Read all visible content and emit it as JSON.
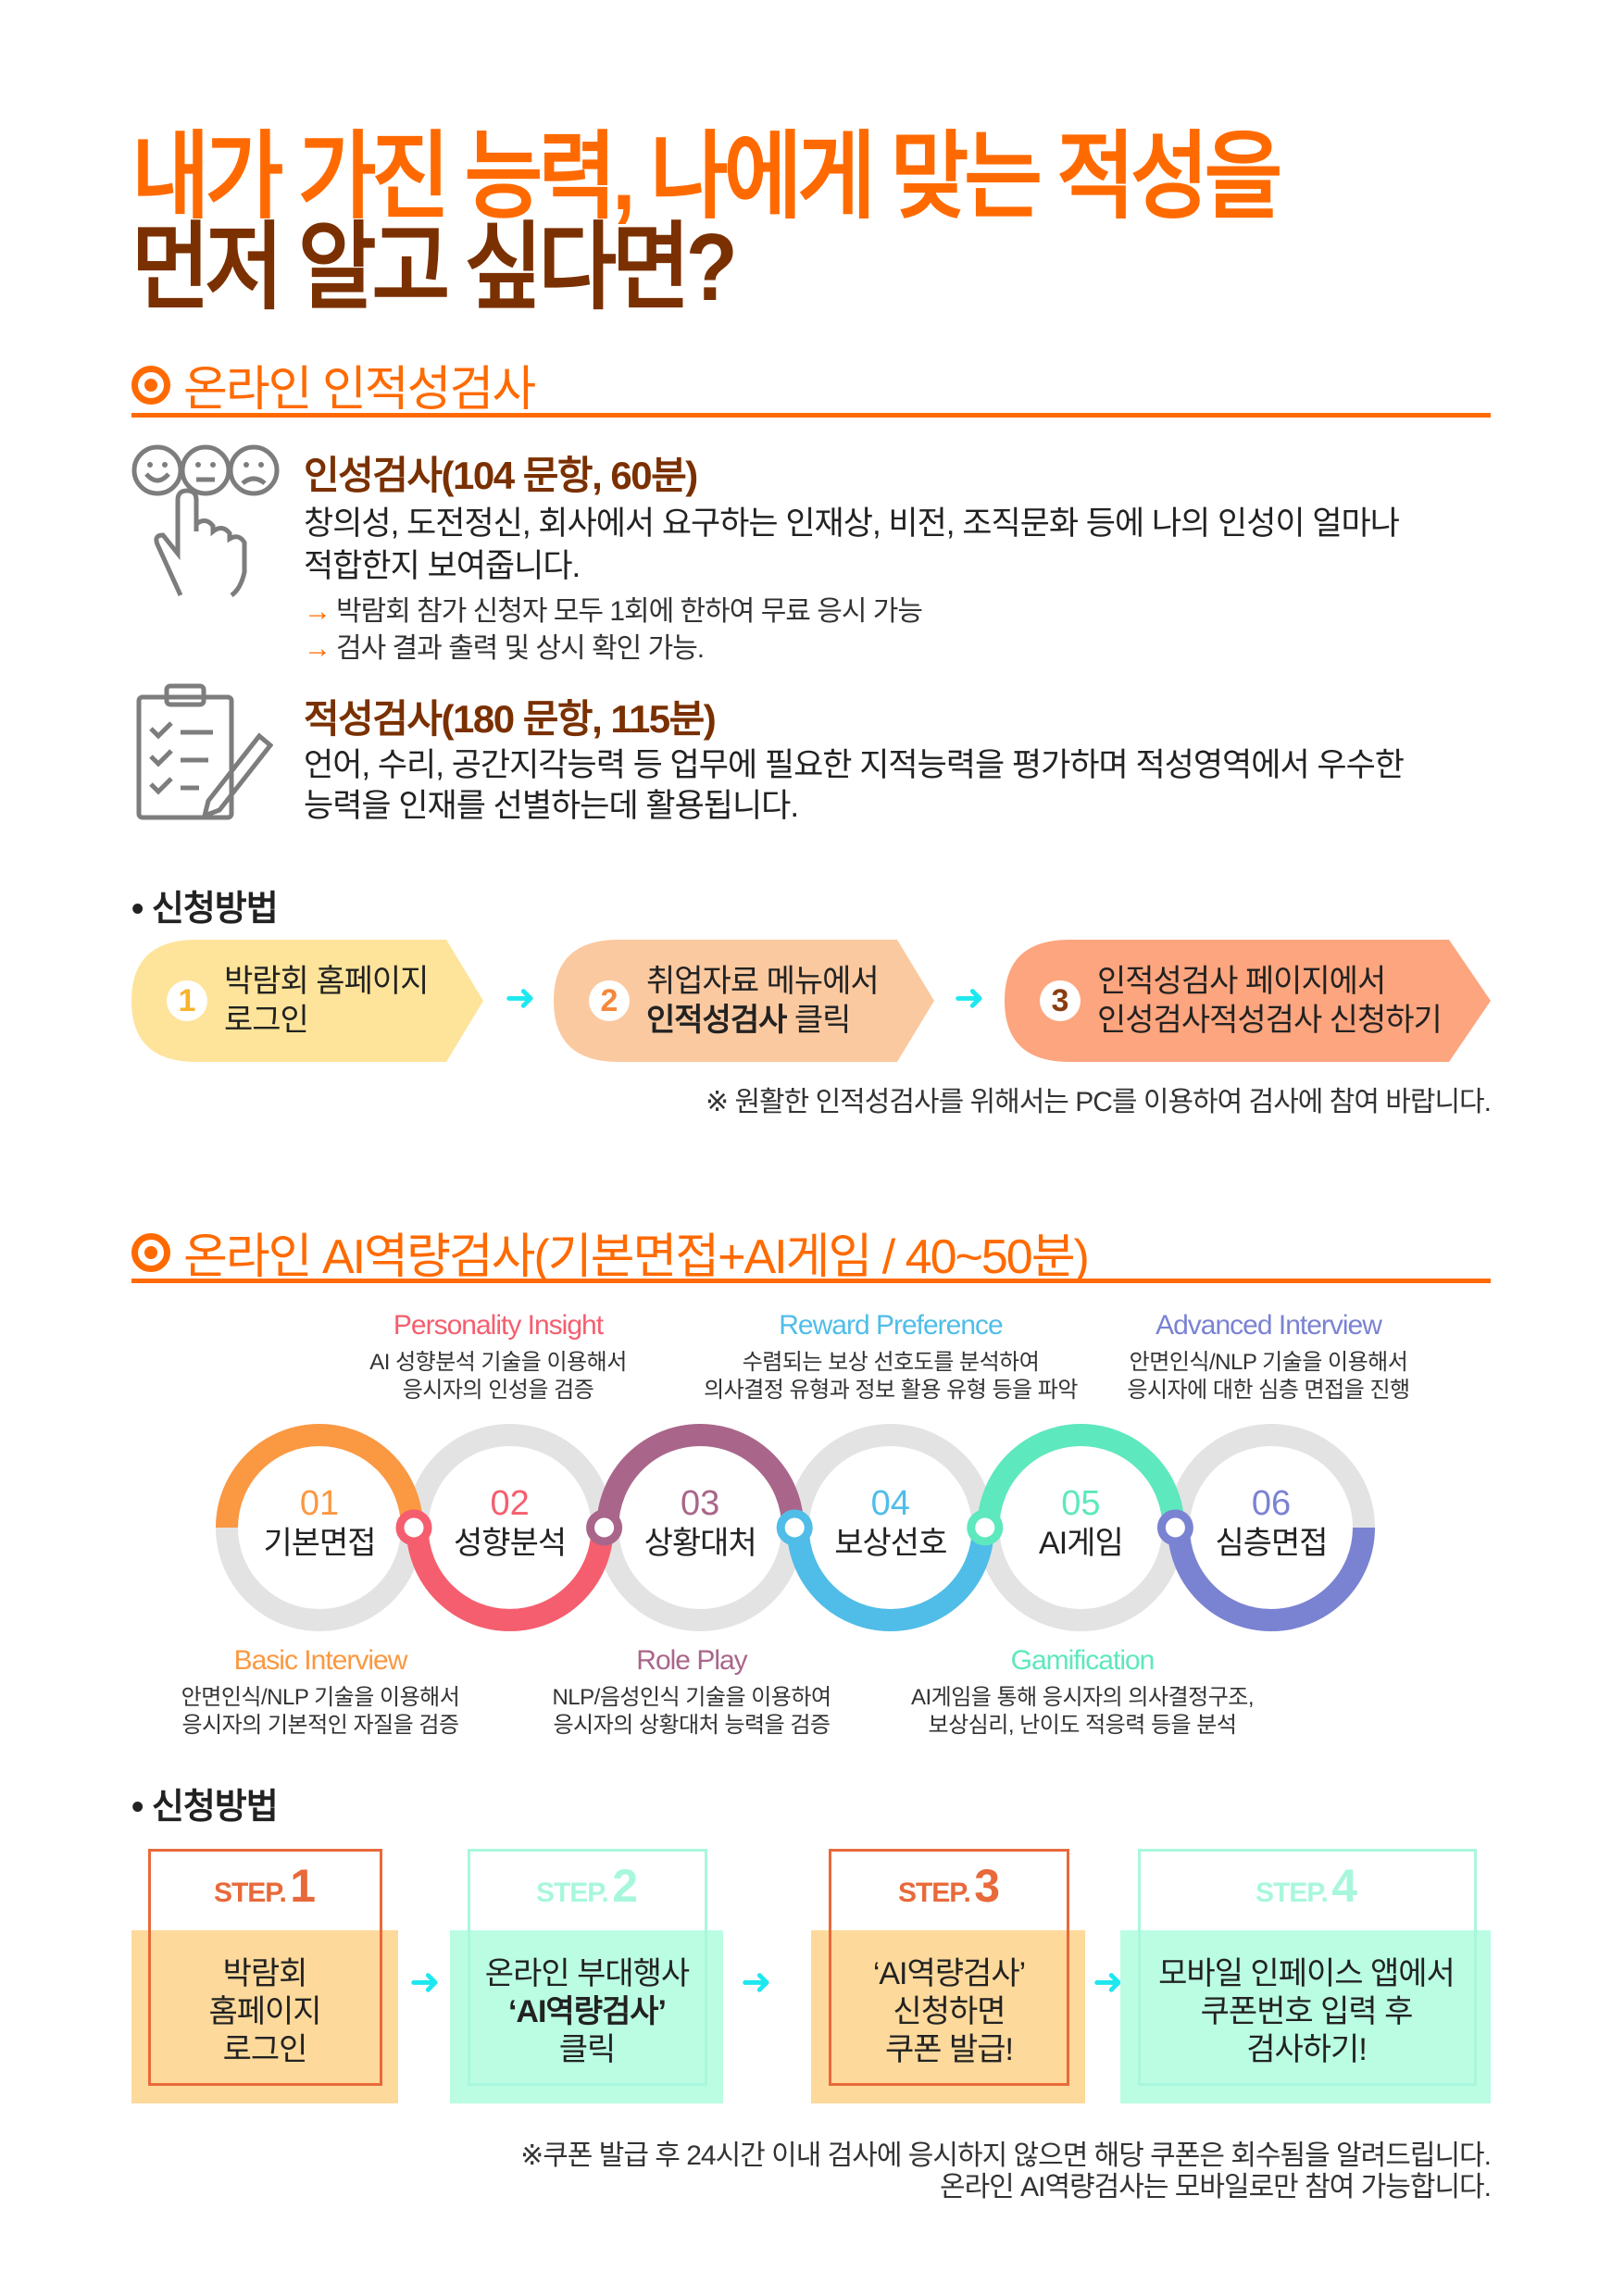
{
  "headline": {
    "line1": "내가 가진 능력, 나에게 맞는 적성을",
    "line2": "먼저 알고 싶다면?"
  },
  "colors": {
    "orange": "#ff6a00",
    "brown": "#7a3000",
    "cyan_arrow": "#1ee8ef"
  },
  "section1": {
    "title": "온라인 인적성검사",
    "icon": "target-icon",
    "personality": {
      "icon": "faces-hand-icon",
      "title": "인성검사(104 문항, 60분)",
      "desc_line1": "창의성, 도전정신, 회사에서 요구하는 인재상, 비전, 조직문화 등에 나의 인성이 얼마나",
      "desc_line2": "적합한지 보여줍니다.",
      "bullets": [
        "박람회 참가 신청자 모두 1회에 한하여 무료 응시 가능",
        "검사 결과 출력 및 상시 확인 가능."
      ],
      "bullet_glyph": "→"
    },
    "aptitude": {
      "icon": "clipboard-checklist-icon",
      "title": "적성검사(180 문항, 115분)",
      "desc_line1": "언어, 수리, 공간지각능력 등 업무에 필요한 지적능력을 평가하며 적성영역에서 우수한",
      "desc_line2": "능력을 인재를 선별하는데 활용됩니다."
    },
    "how_title": "• 신청방법",
    "steps": [
      {
        "num": "1",
        "line1": "박람회 홈페이지",
        "line2": "로그인",
        "color": "#fde49a",
        "num_color": "#f7b32b"
      },
      {
        "num": "2",
        "line1": "취업자료 메뉴에서",
        "line2_bold": "인적성검사",
        "line2": " 클릭",
        "color": "#fbc9a0",
        "num_color": "#f5883a"
      },
      {
        "num": "3",
        "line1": "인적성검사 페이지에서",
        "line2": "인성검사적성검사 신청하기",
        "color": "#fda57e",
        "num_color": "#8a3d10"
      }
    ],
    "arrow_glyph": "➜",
    "note": "※ 원활한 인적성검사를 위해서는 PC를 이용하여 검사에 참여 바랍니다."
  },
  "section2": {
    "title": "온라인 AI역량검사(기본면접+AI게임 / 40~50분)",
    "rings": [
      {
        "num": "01",
        "label": "기본면접",
        "color": "#fb9842",
        "arc": "top"
      },
      {
        "num": "02",
        "label": "성향분석",
        "color": "#f55e6e",
        "arc": "bottom"
      },
      {
        "num": "03",
        "label": "상황대처",
        "color": "#a9668a",
        "arc": "top"
      },
      {
        "num": "04",
        "label": "보상선호",
        "color": "#4fbde8",
        "arc": "bottom"
      },
      {
        "num": "05",
        "label": "AI게임",
        "color": "#5de8bd",
        "arc": "top"
      },
      {
        "num": "06",
        "label": "심층면접",
        "color": "#7a82d2",
        "arc": "bottom"
      }
    ],
    "top_labels": [
      {
        "en": "Personality Insight",
        "ko1": "AI 성향분석 기술을 이용해서",
        "ko2": "응시자의 인성을 검증",
        "color": "#f55e6e"
      },
      {
        "en": "Reward Preference",
        "ko1": "수렴되는 보상 선호도를 분석하여",
        "ko2": "의사결정 유형과 정보 활용 유형 등을 파악",
        "color": "#4fbde8"
      },
      {
        "en": "Advanced Interview",
        "ko1": "안면인식/NLP 기술을 이용해서",
        "ko2": "응시자에 대한 심층 면접을 진행",
        "color": "#7a82d2"
      }
    ],
    "bottom_labels": [
      {
        "en": "Basic Interview",
        "ko1": "안면인식/NLP 기술을 이용해서",
        "ko2": "응시자의 기본적인 자질을 검증",
        "color": "#fb9842"
      },
      {
        "en": "Role Play",
        "ko1": "NLP/음성인식 기술을 이용하여",
        "ko2": "응시자의 상황대처 능력을 검증",
        "color": "#a9668a"
      },
      {
        "en": "Gamification",
        "ko1": "AI게임을 통해 응시자의 의사결정구조,",
        "ko2": "보상심리, 난이도 적응력 등을 분석",
        "color": "#5de8bd"
      }
    ],
    "how_title": "• 신청방법",
    "steps": [
      {
        "step": "STEP.",
        "num": "1",
        "lines": [
          "박람회",
          "홈페이지",
          "로그인"
        ],
        "accent": "#e8693a",
        "fill": "#fdd99b"
      },
      {
        "step": "STEP.",
        "num": "2",
        "lines": [
          "온라인 부대행사",
          "‘AI역량검사’",
          "클릭"
        ],
        "accent": "#a8f7dd",
        "fill": "#bafde3"
      },
      {
        "step": "STEP.",
        "num": "3",
        "lines": [
          "‘AI역량검사’",
          "신청하면",
          "쿠폰 발급!"
        ],
        "accent": "#e8693a",
        "fill": "#fdd99b"
      },
      {
        "step": "STEP.",
        "num": "4",
        "lines": [
          "모바일 인페이스 앱에서",
          "쿠폰번호 입력 후",
          "검사하기!"
        ],
        "accent": "#a8f7dd",
        "fill": "#bafde3"
      }
    ],
    "notes": [
      "※쿠폰 발급 후 24시간 이내 검사에 응시하지 않으면 해당 쿠폰은 회수됨을 알려드립니다.",
      "온라인 AI역량검사는 모바일로만 참여 가능합니다."
    ]
  }
}
